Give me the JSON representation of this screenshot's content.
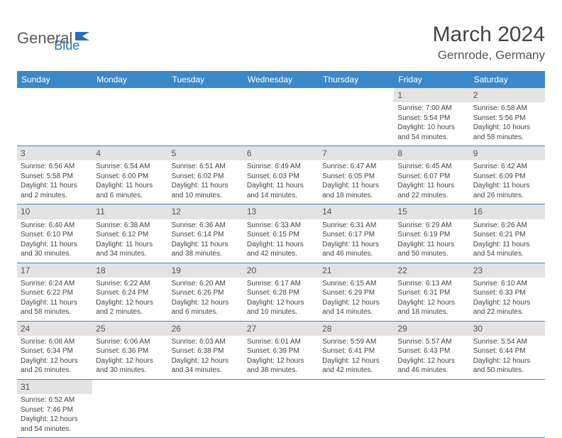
{
  "logo": {
    "part1": "General",
    "part2": "Blue"
  },
  "title": "March 2024",
  "location": "Gernrode, Germany",
  "colors": {
    "header_bg": "#3b88c9",
    "header_text": "#ffffff",
    "daynum_bg": "#e3e3e3",
    "row_border": "#3b88c9",
    "logo_gray": "#5a5a5a",
    "logo_blue": "#2b6fb5"
  },
  "dayHeaders": [
    "Sunday",
    "Monday",
    "Tuesday",
    "Wednesday",
    "Thursday",
    "Friday",
    "Saturday"
  ],
  "weeks": [
    [
      null,
      null,
      null,
      null,
      null,
      {
        "n": "1",
        "sr": "Sunrise: 7:00 AM",
        "ss": "Sunset: 5:54 PM",
        "dl1": "Daylight: 10 hours",
        "dl2": "and 54 minutes."
      },
      {
        "n": "2",
        "sr": "Sunrise: 6:58 AM",
        "ss": "Sunset: 5:56 PM",
        "dl1": "Daylight: 10 hours",
        "dl2": "and 58 minutes."
      }
    ],
    [
      {
        "n": "3",
        "sr": "Sunrise: 6:56 AM",
        "ss": "Sunset: 5:58 PM",
        "dl1": "Daylight: 11 hours",
        "dl2": "and 2 minutes."
      },
      {
        "n": "4",
        "sr": "Sunrise: 6:54 AM",
        "ss": "Sunset: 6:00 PM",
        "dl1": "Daylight: 11 hours",
        "dl2": "and 6 minutes."
      },
      {
        "n": "5",
        "sr": "Sunrise: 6:51 AM",
        "ss": "Sunset: 6:02 PM",
        "dl1": "Daylight: 11 hours",
        "dl2": "and 10 minutes."
      },
      {
        "n": "6",
        "sr": "Sunrise: 6:49 AM",
        "ss": "Sunset: 6:03 PM",
        "dl1": "Daylight: 11 hours",
        "dl2": "and 14 minutes."
      },
      {
        "n": "7",
        "sr": "Sunrise: 6:47 AM",
        "ss": "Sunset: 6:05 PM",
        "dl1": "Daylight: 11 hours",
        "dl2": "and 18 minutes."
      },
      {
        "n": "8",
        "sr": "Sunrise: 6:45 AM",
        "ss": "Sunset: 6:07 PM",
        "dl1": "Daylight: 11 hours",
        "dl2": "and 22 minutes."
      },
      {
        "n": "9",
        "sr": "Sunrise: 6:42 AM",
        "ss": "Sunset: 6:09 PM",
        "dl1": "Daylight: 11 hours",
        "dl2": "and 26 minutes."
      }
    ],
    [
      {
        "n": "10",
        "sr": "Sunrise: 6:40 AM",
        "ss": "Sunset: 6:10 PM",
        "dl1": "Daylight: 11 hours",
        "dl2": "and 30 minutes."
      },
      {
        "n": "11",
        "sr": "Sunrise: 6:38 AM",
        "ss": "Sunset: 6:12 PM",
        "dl1": "Daylight: 11 hours",
        "dl2": "and 34 minutes."
      },
      {
        "n": "12",
        "sr": "Sunrise: 6:36 AM",
        "ss": "Sunset: 6:14 PM",
        "dl1": "Daylight: 11 hours",
        "dl2": "and 38 minutes."
      },
      {
        "n": "13",
        "sr": "Sunrise: 6:33 AM",
        "ss": "Sunset: 6:15 PM",
        "dl1": "Daylight: 11 hours",
        "dl2": "and 42 minutes."
      },
      {
        "n": "14",
        "sr": "Sunrise: 6:31 AM",
        "ss": "Sunset: 6:17 PM",
        "dl1": "Daylight: 11 hours",
        "dl2": "and 46 minutes."
      },
      {
        "n": "15",
        "sr": "Sunrise: 6:29 AM",
        "ss": "Sunset: 6:19 PM",
        "dl1": "Daylight: 11 hours",
        "dl2": "and 50 minutes."
      },
      {
        "n": "16",
        "sr": "Sunrise: 6:26 AM",
        "ss": "Sunset: 6:21 PM",
        "dl1": "Daylight: 11 hours",
        "dl2": "and 54 minutes."
      }
    ],
    [
      {
        "n": "17",
        "sr": "Sunrise: 6:24 AM",
        "ss": "Sunset: 6:22 PM",
        "dl1": "Daylight: 11 hours",
        "dl2": "and 58 minutes."
      },
      {
        "n": "18",
        "sr": "Sunrise: 6:22 AM",
        "ss": "Sunset: 6:24 PM",
        "dl1": "Daylight: 12 hours",
        "dl2": "and 2 minutes."
      },
      {
        "n": "19",
        "sr": "Sunrise: 6:20 AM",
        "ss": "Sunset: 6:26 PM",
        "dl1": "Daylight: 12 hours",
        "dl2": "and 6 minutes."
      },
      {
        "n": "20",
        "sr": "Sunrise: 6:17 AM",
        "ss": "Sunset: 6:28 PM",
        "dl1": "Daylight: 12 hours",
        "dl2": "and 10 minutes."
      },
      {
        "n": "21",
        "sr": "Sunrise: 6:15 AM",
        "ss": "Sunset: 6:29 PM",
        "dl1": "Daylight: 12 hours",
        "dl2": "and 14 minutes."
      },
      {
        "n": "22",
        "sr": "Sunrise: 6:13 AM",
        "ss": "Sunset: 6:31 PM",
        "dl1": "Daylight: 12 hours",
        "dl2": "and 18 minutes."
      },
      {
        "n": "23",
        "sr": "Sunrise: 6:10 AM",
        "ss": "Sunset: 6:33 PM",
        "dl1": "Daylight: 12 hours",
        "dl2": "and 22 minutes."
      }
    ],
    [
      {
        "n": "24",
        "sr": "Sunrise: 6:08 AM",
        "ss": "Sunset: 6:34 PM",
        "dl1": "Daylight: 12 hours",
        "dl2": "and 26 minutes."
      },
      {
        "n": "25",
        "sr": "Sunrise: 6:06 AM",
        "ss": "Sunset: 6:36 PM",
        "dl1": "Daylight: 12 hours",
        "dl2": "and 30 minutes."
      },
      {
        "n": "26",
        "sr": "Sunrise: 6:03 AM",
        "ss": "Sunset: 6:38 PM",
        "dl1": "Daylight: 12 hours",
        "dl2": "and 34 minutes."
      },
      {
        "n": "27",
        "sr": "Sunrise: 6:01 AM",
        "ss": "Sunset: 6:39 PM",
        "dl1": "Daylight: 12 hours",
        "dl2": "and 38 minutes."
      },
      {
        "n": "28",
        "sr": "Sunrise: 5:59 AM",
        "ss": "Sunset: 6:41 PM",
        "dl1": "Daylight: 12 hours",
        "dl2": "and 42 minutes."
      },
      {
        "n": "29",
        "sr": "Sunrise: 5:57 AM",
        "ss": "Sunset: 6:43 PM",
        "dl1": "Daylight: 12 hours",
        "dl2": "and 46 minutes."
      },
      {
        "n": "30",
        "sr": "Sunrise: 5:54 AM",
        "ss": "Sunset: 6:44 PM",
        "dl1": "Daylight: 12 hours",
        "dl2": "and 50 minutes."
      }
    ],
    [
      {
        "n": "31",
        "sr": "Sunrise: 6:52 AM",
        "ss": "Sunset: 7:46 PM",
        "dl1": "Daylight: 12 hours",
        "dl2": "and 54 minutes."
      },
      null,
      null,
      null,
      null,
      null,
      null
    ]
  ]
}
